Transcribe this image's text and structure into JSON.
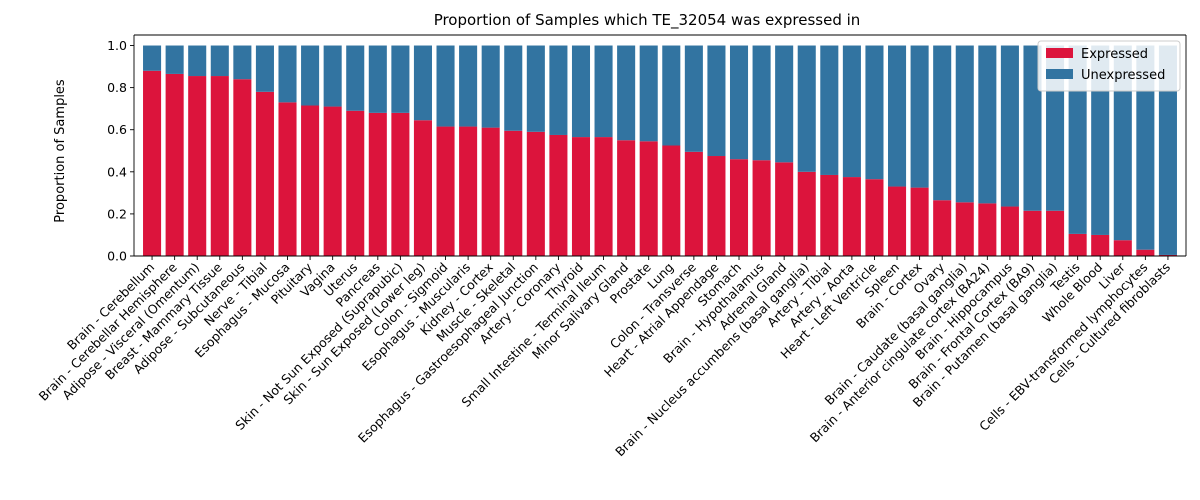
{
  "chart_data": {
    "type": "bar",
    "stacked": true,
    "title": "Proportion of Samples which TE_32054 was expressed in",
    "xlabel": "",
    "ylabel": "Proportion of Samples",
    "ylim": [
      0,
      1.05
    ],
    "yticks": [
      "0.0",
      "0.2",
      "0.4",
      "0.6",
      "0.8",
      "1.0"
    ],
    "grid": false,
    "legend_position": "top-right",
    "categories": [
      "Brain - Cerebellum",
      "Brain - Cerebellar Hemisphere",
      "Adipose - Visceral (Omentum)",
      "Breast - Mammary Tissue",
      "Adipose - Subcutaneous",
      "Nerve - Tibial",
      "Esophagus - Mucosa",
      "Pituitary",
      "Vagina",
      "Uterus",
      "Pancreas",
      "Skin - Not Sun Exposed (Suprapubic)",
      "Skin - Sun Exposed (Lower leg)",
      "Colon - Sigmoid",
      "Esophagus - Muscularis",
      "Kidney - Cortex",
      "Muscle - Skeletal",
      "Esophagus - Gastroesophageal Junction",
      "Artery - Coronary",
      "Thyroid",
      "Small Intestine - Terminal Ileum",
      "Minor Salivary Gland",
      "Prostate",
      "Lung",
      "Colon - Transverse",
      "Heart - Atrial Appendage",
      "Stomach",
      "Brain - Hypothalamus",
      "Adrenal Gland",
      "Brain - Nucleus accumbens (basal ganglia)",
      "Artery - Tibial",
      "Artery - Aorta",
      "Heart - Left Ventricle",
      "Spleen",
      "Brain - Cortex",
      "Ovary",
      "Brain - Caudate (basal ganglia)",
      "Brain - Anterior cingulate cortex (BA24)",
      "Brain - Hippocampus",
      "Brain - Frontal Cortex (BA9)",
      "Brain - Putamen (basal ganglia)",
      "Testis",
      "Whole Blood",
      "Liver",
      "Cells - EBV-transformed lymphocytes",
      "Cells - Cultured fibroblasts"
    ],
    "series": [
      {
        "name": "Expressed",
        "color": "#dc143c",
        "values": [
          0.88,
          0.865,
          0.855,
          0.855,
          0.84,
          0.78,
          0.73,
          0.715,
          0.71,
          0.69,
          0.68,
          0.68,
          0.645,
          0.615,
          0.615,
          0.61,
          0.595,
          0.59,
          0.575,
          0.565,
          0.565,
          0.55,
          0.545,
          0.525,
          0.495,
          0.475,
          0.46,
          0.455,
          0.445,
          0.4,
          0.385,
          0.375,
          0.365,
          0.33,
          0.325,
          0.265,
          0.255,
          0.25,
          0.235,
          0.215,
          0.215,
          0.105,
          0.1,
          0.075,
          0.03,
          0.005
        ]
      },
      {
        "name": "Unexpressed",
        "color": "#3274a1",
        "values": [
          0.12,
          0.135,
          0.145,
          0.145,
          0.16,
          0.22,
          0.27,
          0.285,
          0.29,
          0.31,
          0.32,
          0.32,
          0.355,
          0.385,
          0.385,
          0.39,
          0.405,
          0.41,
          0.425,
          0.435,
          0.435,
          0.45,
          0.455,
          0.475,
          0.505,
          0.525,
          0.54,
          0.545,
          0.555,
          0.6,
          0.615,
          0.625,
          0.635,
          0.67,
          0.675,
          0.735,
          0.745,
          0.75,
          0.765,
          0.785,
          0.785,
          0.895,
          0.9,
          0.925,
          0.97,
          0.995
        ]
      }
    ]
  }
}
